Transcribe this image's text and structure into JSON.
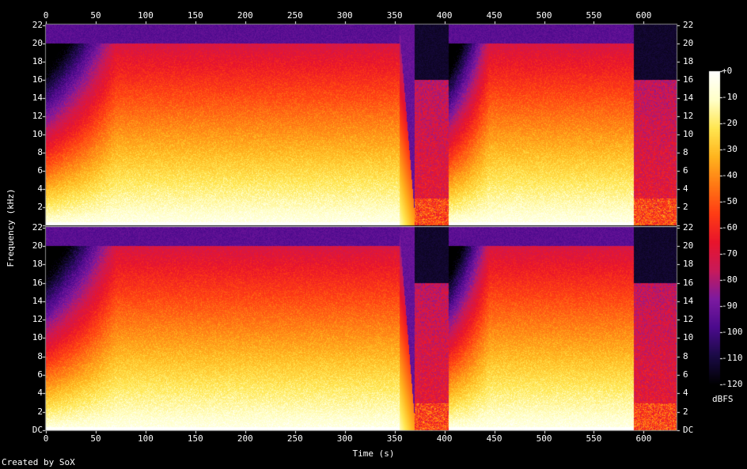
{
  "footer": {
    "credit": "Created by SoX"
  },
  "chart_data": {
    "type": "heatmap",
    "xlabel": "Time (s)",
    "ylabel": "Frequency (kHz)",
    "colorbar_label": "dBFS",
    "xlim": [
      0,
      633
    ],
    "ylim_khz": [
      0,
      22.05
    ],
    "x_ticks": [
      0,
      50,
      100,
      150,
      200,
      250,
      300,
      350,
      400,
      450,
      500,
      550,
      600
    ],
    "y_ticks": [
      "DC",
      "2",
      "4",
      "6",
      "8",
      "10",
      "12",
      "14",
      "16",
      "18",
      "20",
      "22"
    ],
    "colorbar_ticks": [
      "+0",
      "-10",
      "-20",
      "-30",
      "-40",
      "-50",
      "-60",
      "-70",
      "-80",
      "-90",
      "-100",
      "-110",
      "-120"
    ],
    "colorbar_range_db": [
      -120,
      0
    ],
    "channels": [
      "channel-1",
      "channel-2"
    ],
    "colormap": [
      "#000000",
      "#1a0a45",
      "#4b0a8c",
      "#7c1aa0",
      "#c81a5a",
      "#e8142c",
      "#ff3c14",
      "#ff7814",
      "#ffb41e",
      "#ffe650",
      "#ffffc8",
      "#ffffff"
    ],
    "segments": [
      {
        "start": 0,
        "end": 70,
        "kind": "fade-in",
        "cutoff_khz": 20
      },
      {
        "start": 70,
        "end": 355,
        "kind": "music",
        "cutoff_khz": 20
      },
      {
        "start": 355,
        "end": 370,
        "kind": "fade-out",
        "cutoff_khz": 20
      },
      {
        "start": 370,
        "end": 404,
        "kind": "noise",
        "cutoff_khz": 16
      },
      {
        "start": 404,
        "end": 445,
        "kind": "fade-in",
        "cutoff_khz": 20
      },
      {
        "start": 445,
        "end": 590,
        "kind": "music",
        "cutoff_khz": 20
      },
      {
        "start": 590,
        "end": 633,
        "kind": "noise",
        "cutoff_khz": 16
      }
    ]
  }
}
